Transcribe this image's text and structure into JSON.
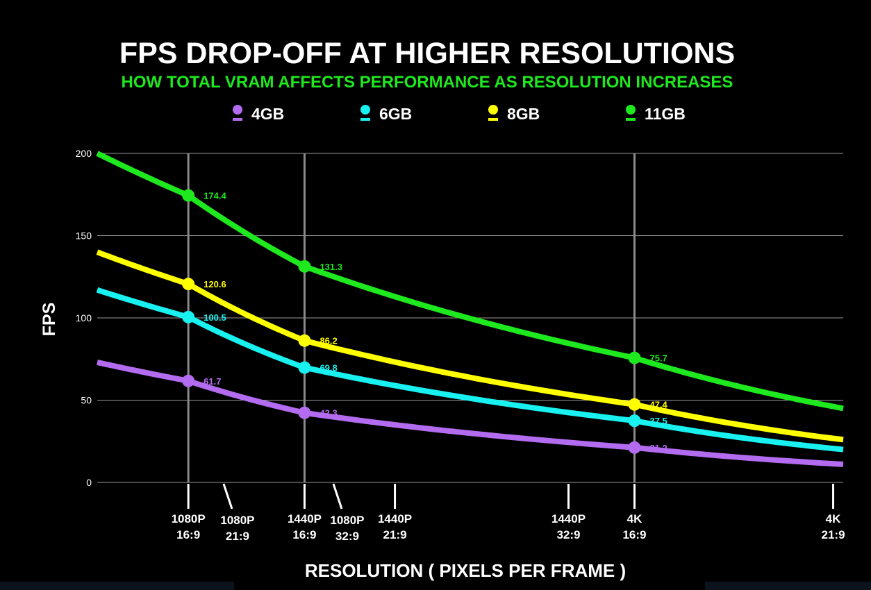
{
  "chart_data": {
    "type": "line",
    "title": "FPS DROP-OFF AT HIGHER RESOLUTIONS",
    "subtitle": "HOW TOTAL VRAM AFFECTS PERFORMANCE AS RESOLUTION INCREASES",
    "ylabel": "FPS",
    "xlabel": "RESOLUTION  ( PIXELS PER FRAME )",
    "ylim": [
      0,
      200
    ],
    "yticks": [
      0,
      50,
      100,
      150,
      200
    ],
    "xlim_mpx": [
      0.8,
      11.2
    ],
    "grid": true,
    "legend_position": "top",
    "resolutions": [
      {
        "name": "1080P",
        "aspect": "16:9",
        "mpx": 2.07
      },
      {
        "name": "1080P",
        "aspect": "21:9",
        "mpx": 2.62
      },
      {
        "name": "1440P",
        "aspect": "16:9",
        "mpx": 3.69
      },
      {
        "name": "1080P",
        "aspect": "32:9",
        "mpx": 4.15
      },
      {
        "name": "1440P",
        "aspect": "21:9",
        "mpx": 4.95
      },
      {
        "name": "1440P",
        "aspect": "32:9",
        "mpx": 7.37
      },
      {
        "name": "4K",
        "aspect": "16:9",
        "mpx": 8.29
      },
      {
        "name": "4K",
        "aspect": "21:9",
        "mpx": 11.06
      }
    ],
    "vertical_markers_mpx": [
      2.07,
      3.69,
      8.29
    ],
    "series": [
      {
        "name": "4GB",
        "color": "#b36cf0",
        "points": [
          {
            "mpx": 2.07,
            "fps": 61.7,
            "label": "61.7"
          },
          {
            "mpx": 3.69,
            "fps": 42.3,
            "label": "42.3"
          },
          {
            "mpx": 8.29,
            "fps": 21.2,
            "label": "21.2"
          }
        ],
        "curve_start_fps": 73,
        "curve_end_fps": 11
      },
      {
        "name": "6GB",
        "color": "#19f0f0",
        "points": [
          {
            "mpx": 2.07,
            "fps": 100.5,
            "label": "100.5"
          },
          {
            "mpx": 3.69,
            "fps": 69.8,
            "label": "69.8"
          },
          {
            "mpx": 8.29,
            "fps": 37.5,
            "label": "37.5"
          }
        ],
        "curve_start_fps": 117,
        "curve_end_fps": 20
      },
      {
        "name": "8GB",
        "color": "#ffff00",
        "points": [
          {
            "mpx": 2.07,
            "fps": 120.6,
            "label": "120.6"
          },
          {
            "mpx": 3.69,
            "fps": 86.2,
            "label": "86.2"
          },
          {
            "mpx": 8.29,
            "fps": 47.4,
            "label": "47.4"
          }
        ],
        "curve_start_fps": 140,
        "curve_end_fps": 26
      },
      {
        "name": "11GB",
        "color": "#1ee81e",
        "points": [
          {
            "mpx": 2.07,
            "fps": 174.4,
            "label": "174.4"
          },
          {
            "mpx": 3.69,
            "fps": 131.3,
            "label": "131.3"
          },
          {
            "mpx": 8.29,
            "fps": 75.7,
            "label": "75.7"
          }
        ],
        "curve_start_fps": 200,
        "curve_end_fps": 45
      }
    ]
  },
  "colors": {
    "background": "#000000",
    "grid": "#9a9a9a",
    "marker_lines": "#8a8a8a",
    "subtitle": "#1ee81e",
    "text": "#ffffff"
  }
}
